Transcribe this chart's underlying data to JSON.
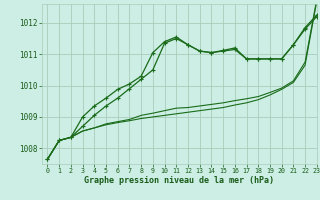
{
  "bg_color": "#cceee4",
  "grid_color": "#aaccbb",
  "line_color": "#1a6b1a",
  "text_color": "#1a5c1a",
  "xlabel": "Graphe pression niveau de la mer (hPa)",
  "xlim": [
    -0.5,
    23
  ],
  "ylim": [
    1007.5,
    1012.6
  ],
  "yticks": [
    1008,
    1009,
    1010,
    1011,
    1012
  ],
  "xticks": [
    0,
    1,
    2,
    3,
    4,
    5,
    6,
    7,
    8,
    9,
    10,
    11,
    12,
    13,
    14,
    15,
    16,
    17,
    18,
    19,
    20,
    21,
    22,
    23
  ],
  "series": [
    [
      1007.65,
      1008.25,
      1008.35,
      1008.55,
      1008.65,
      1008.75,
      1008.82,
      1008.88,
      1008.95,
      1009.0,
      1009.05,
      1009.1,
      1009.15,
      1009.2,
      1009.25,
      1009.3,
      1009.38,
      1009.45,
      1009.55,
      1009.7,
      1009.88,
      1010.1,
      1010.65,
      1012.7
    ],
    [
      1007.65,
      1008.25,
      1008.35,
      1008.55,
      1008.65,
      1008.78,
      1008.85,
      1008.92,
      1009.05,
      1009.12,
      1009.2,
      1009.28,
      1009.3,
      1009.35,
      1009.4,
      1009.45,
      1009.52,
      1009.58,
      1009.65,
      1009.78,
      1009.92,
      1010.15,
      1010.75,
      1012.75
    ],
    [
      1007.65,
      1008.25,
      1008.35,
      1008.7,
      1009.05,
      1009.35,
      1009.6,
      1009.9,
      1010.2,
      1010.5,
      1011.35,
      1011.5,
      1011.3,
      1011.1,
      1011.05,
      1011.1,
      1011.15,
      1010.85,
      1010.85,
      1010.85,
      1010.85,
      1011.3,
      1011.8,
      1012.2
    ],
    [
      1007.65,
      1008.25,
      1008.35,
      1009.0,
      1009.35,
      1009.6,
      1009.88,
      1010.05,
      1010.3,
      1011.05,
      1011.4,
      1011.55,
      1011.3,
      1011.1,
      1011.05,
      1011.12,
      1011.2,
      1010.85,
      1010.85,
      1010.85,
      1010.85,
      1011.3,
      1011.85,
      1012.25
    ]
  ],
  "markers": [
    false,
    false,
    true,
    true
  ]
}
